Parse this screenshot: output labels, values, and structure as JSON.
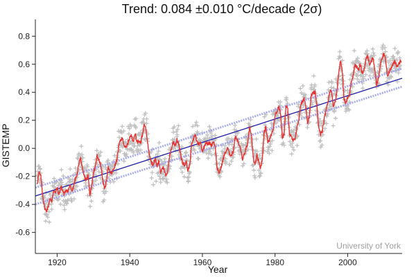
{
  "chart_data": {
    "type": "scatter",
    "title": "Trend: 0.084 ±0.010 °C/decade (2σ)",
    "xlabel": "Year",
    "ylabel": "GISTEMP",
    "xlim": [
      1914,
      2015
    ],
    "ylim": [
      -0.75,
      0.92
    ],
    "x_ticks": [
      1920,
      1940,
      1960,
      1980,
      2000
    ],
    "y_ticks": [
      -0.6,
      -0.4,
      -0.2,
      0.0,
      0.2,
      0.4,
      0.6,
      0.8
    ],
    "y_tick_labels": [
      "-0.6",
      "-0.4",
      "-0.2",
      "0.0",
      "0.2",
      "0.4",
      "0.6",
      "0.8"
    ],
    "watermark": "University of York",
    "grid": false,
    "colors": {
      "monthly_points": "#c0c0c0",
      "running_mean": "#e8312f",
      "trend_line": "#1c1ca8",
      "confidence_band": "#9fa3f0"
    },
    "trend": {
      "slope_per_decade": 0.084,
      "uncertainty_2sigma": 0.01,
      "line": [
        [
          1914,
          -0.34
        ],
        [
          2015,
          0.5
        ]
      ],
      "upper_band": [
        [
          1914,
          -0.28
        ],
        [
          2015,
          0.57
        ]
      ],
      "lower_band": [
        [
          1914,
          -0.4
        ],
        [
          2015,
          0.44
        ]
      ]
    },
    "running_mean": [
      [
        1914.5,
        -0.25
      ],
      [
        1915.0,
        -0.17
      ],
      [
        1915.5,
        -0.2
      ],
      [
        1916.0,
        -0.33
      ],
      [
        1916.5,
        -0.42
      ],
      [
        1917.0,
        -0.45
      ],
      [
        1917.5,
        -0.42
      ],
      [
        1918.0,
        -0.36
      ],
      [
        1918.5,
        -0.38
      ],
      [
        1919.0,
        -0.3
      ],
      [
        1919.5,
        -0.32
      ],
      [
        1920.0,
        -0.28
      ],
      [
        1920.5,
        -0.33
      ],
      [
        1921.0,
        -0.27
      ],
      [
        1921.5,
        -0.3
      ],
      [
        1922.0,
        -0.33
      ],
      [
        1922.5,
        -0.29
      ],
      [
        1923.0,
        -0.31
      ],
      [
        1923.5,
        -0.26
      ],
      [
        1924.0,
        -0.31
      ],
      [
        1924.5,
        -0.27
      ],
      [
        1925.0,
        -0.22
      ],
      [
        1925.5,
        -0.19
      ],
      [
        1926.0,
        -0.1
      ],
      [
        1926.5,
        -0.07
      ],
      [
        1927.0,
        -0.16
      ],
      [
        1927.5,
        -0.2
      ],
      [
        1928.0,
        -0.23
      ],
      [
        1928.5,
        -0.19
      ],
      [
        1929.0,
        -0.33
      ],
      [
        1929.5,
        -0.27
      ],
      [
        1930.0,
        -0.17
      ],
      [
        1930.5,
        -0.14
      ],
      [
        1931.0,
        -0.05
      ],
      [
        1931.5,
        -0.08
      ],
      [
        1932.0,
        -0.12
      ],
      [
        1932.5,
        -0.21
      ],
      [
        1933.0,
        -0.29
      ],
      [
        1933.5,
        -0.25
      ],
      [
        1934.0,
        -0.13
      ],
      [
        1934.5,
        -0.17
      ],
      [
        1935.0,
        -0.18
      ],
      [
        1935.5,
        -0.15
      ],
      [
        1936.0,
        -0.12
      ],
      [
        1936.5,
        -0.08
      ],
      [
        1937.0,
        0.02
      ],
      [
        1937.5,
        0.06
      ],
      [
        1938.0,
        0.07
      ],
      [
        1938.5,
        0.02
      ],
      [
        1939.0,
        0.0
      ],
      [
        1939.5,
        0.04
      ],
      [
        1940.0,
        0.08
      ],
      [
        1940.5,
        0.09
      ],
      [
        1941.0,
        0.05
      ],
      [
        1941.5,
        0.11
      ],
      [
        1942.0,
        0.04
      ],
      [
        1942.5,
        0.06
      ],
      [
        1943.0,
        0.04
      ],
      [
        1943.5,
        0.1
      ],
      [
        1944.0,
        0.17
      ],
      [
        1944.5,
        0.13
      ],
      [
        1945.0,
        0.02
      ],
      [
        1945.5,
        -0.05
      ],
      [
        1946.0,
        -0.1
      ],
      [
        1946.5,
        -0.12
      ],
      [
        1947.0,
        -0.07
      ],
      [
        1947.5,
        -0.13
      ],
      [
        1948.0,
        -0.09
      ],
      [
        1948.5,
        -0.17
      ],
      [
        1949.0,
        -0.13
      ],
      [
        1949.5,
        -0.16
      ],
      [
        1950.0,
        -0.2
      ],
      [
        1950.5,
        -0.15
      ],
      [
        1951.0,
        -0.05
      ],
      [
        1951.5,
        0.0
      ],
      [
        1952.0,
        0.05
      ],
      [
        1952.5,
        0.02
      ],
      [
        1953.0,
        0.06
      ],
      [
        1953.5,
        0.03
      ],
      [
        1954.0,
        -0.05
      ],
      [
        1954.5,
        -0.1
      ],
      [
        1955.0,
        -0.12
      ],
      [
        1955.5,
        -0.09
      ],
      [
        1956.0,
        -0.16
      ],
      [
        1956.5,
        -0.12
      ],
      [
        1957.0,
        0.02
      ],
      [
        1957.5,
        0.06
      ],
      [
        1958.0,
        0.1
      ],
      [
        1958.5,
        0.05
      ],
      [
        1959.0,
        0.03
      ],
      [
        1959.5,
        0.04
      ],
      [
        1960.0,
        -0.02
      ],
      [
        1960.5,
        0.01
      ],
      [
        1961.0,
        0.05
      ],
      [
        1961.5,
        0.03
      ],
      [
        1962.0,
        0.04
      ],
      [
        1962.5,
        0.02
      ],
      [
        1963.0,
        0.05
      ],
      [
        1963.5,
        0.02
      ],
      [
        1964.0,
        -0.13
      ],
      [
        1964.5,
        -0.18
      ],
      [
        1965.0,
        -0.15
      ],
      [
        1965.5,
        -0.1
      ],
      [
        1966.0,
        -0.05
      ],
      [
        1966.5,
        -0.02
      ],
      [
        1967.0,
        0.0
      ],
      [
        1967.5,
        -0.04
      ],
      [
        1968.0,
        -0.05
      ],
      [
        1968.5,
        -0.02
      ],
      [
        1969.0,
        0.08
      ],
      [
        1969.5,
        0.07
      ],
      [
        1970.0,
        0.03
      ],
      [
        1970.5,
        0.0
      ],
      [
        1971.0,
        -0.08
      ],
      [
        1971.5,
        -0.05
      ],
      [
        1972.0,
        0.0
      ],
      [
        1972.5,
        0.03
      ],
      [
        1973.0,
        0.15
      ],
      [
        1973.5,
        0.1
      ],
      [
        1974.0,
        -0.07
      ],
      [
        1974.5,
        -0.12
      ],
      [
        1975.0,
        -0.05
      ],
      [
        1975.5,
        -0.1
      ],
      [
        1976.0,
        -0.14
      ],
      [
        1976.5,
        -0.08
      ],
      [
        1977.0,
        0.12
      ],
      [
        1977.5,
        0.15
      ],
      [
        1978.0,
        0.05
      ],
      [
        1978.5,
        0.06
      ],
      [
        1979.0,
        0.1
      ],
      [
        1979.5,
        0.14
      ],
      [
        1980.0,
        0.24
      ],
      [
        1980.5,
        0.26
      ],
      [
        1981.0,
        0.3
      ],
      [
        1981.5,
        0.25
      ],
      [
        1982.0,
        0.08
      ],
      [
        1982.5,
        0.1
      ],
      [
        1983.0,
        0.3
      ],
      [
        1983.5,
        0.28
      ],
      [
        1984.0,
        0.1
      ],
      [
        1984.5,
        0.08
      ],
      [
        1985.0,
        0.05
      ],
      [
        1985.5,
        0.07
      ],
      [
        1986.0,
        0.14
      ],
      [
        1986.5,
        0.2
      ],
      [
        1987.0,
        0.3
      ],
      [
        1987.5,
        0.33
      ],
      [
        1988.0,
        0.36
      ],
      [
        1988.5,
        0.3
      ],
      [
        1989.0,
        0.18
      ],
      [
        1989.5,
        0.24
      ],
      [
        1990.0,
        0.38
      ],
      [
        1990.5,
        0.39
      ],
      [
        1991.0,
        0.4
      ],
      [
        1991.5,
        0.32
      ],
      [
        1992.0,
        0.15
      ],
      [
        1992.5,
        0.1
      ],
      [
        1993.0,
        0.12
      ],
      [
        1993.5,
        0.2
      ],
      [
        1994.0,
        0.27
      ],
      [
        1994.5,
        0.32
      ],
      [
        1995.0,
        0.4
      ],
      [
        1995.5,
        0.42
      ],
      [
        1996.0,
        0.3
      ],
      [
        1996.5,
        0.33
      ],
      [
        1997.0,
        0.4
      ],
      [
        1997.5,
        0.53
      ],
      [
        1998.0,
        0.63
      ],
      [
        1998.5,
        0.55
      ],
      [
        1999.0,
        0.35
      ],
      [
        1999.5,
        0.32
      ],
      [
        2000.0,
        0.36
      ],
      [
        2000.5,
        0.38
      ],
      [
        2001.0,
        0.48
      ],
      [
        2001.5,
        0.52
      ],
      [
        2002.0,
        0.6
      ],
      [
        2002.5,
        0.58
      ],
      [
        2003.0,
        0.56
      ],
      [
        2003.5,
        0.6
      ],
      [
        2004.0,
        0.53
      ],
      [
        2004.5,
        0.56
      ],
      [
        2005.0,
        0.63
      ],
      [
        2005.5,
        0.66
      ],
      [
        2006.0,
        0.6
      ],
      [
        2006.5,
        0.62
      ],
      [
        2007.0,
        0.65
      ],
      [
        2007.5,
        0.55
      ],
      [
        2008.0,
        0.45
      ],
      [
        2008.5,
        0.5
      ],
      [
        2009.0,
        0.6
      ],
      [
        2009.5,
        0.64
      ],
      [
        2010.0,
        0.68
      ],
      [
        2010.5,
        0.62
      ],
      [
        2011.0,
        0.52
      ],
      [
        2011.5,
        0.55
      ],
      [
        2012.0,
        0.58
      ],
      [
        2012.5,
        0.6
      ],
      [
        2013.0,
        0.62
      ],
      [
        2013.5,
        0.58
      ],
      [
        2014.0,
        0.6
      ],
      [
        2014.5,
        0.62
      ]
    ]
  }
}
